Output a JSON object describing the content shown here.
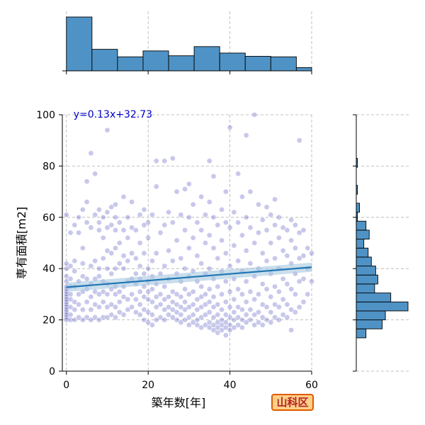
{
  "chart_data": {
    "type": "scatter",
    "title": "",
    "xlabel": "築年数[年]",
    "ylabel": "専有面積[m2]",
    "xlim": [
      -1,
      60
    ],
    "ylim": [
      0,
      100
    ],
    "xticks": [
      "0",
      "20",
      "40",
      "60"
    ],
    "yticks": [
      "0",
      "20",
      "40",
      "60",
      "80",
      "100"
    ],
    "grid": true,
    "regression": {
      "label": "y=0.13x+32.73",
      "slope": 0.13,
      "intercept": 32.73,
      "color": "#1f77b4",
      "ci_color": "#a6c8e0",
      "label_color": "#0000cc"
    },
    "point_color": "#3a3ab8",
    "bar_color": "#4f93c6",
    "points": [
      [
        0,
        20
      ],
      [
        0,
        21
      ],
      [
        0,
        22
      ],
      [
        0,
        23
      ],
      [
        0,
        24
      ],
      [
        0,
        25
      ],
      [
        0,
        26
      ],
      [
        0,
        27
      ],
      [
        0,
        28
      ],
      [
        0,
        29
      ],
      [
        0,
        30
      ],
      [
        0,
        31
      ],
      [
        0,
        32
      ],
      [
        0,
        33
      ],
      [
        0,
        35
      ],
      [
        0,
        37
      ],
      [
        0,
        40
      ],
      [
        0,
        42
      ],
      [
        0,
        61
      ],
      [
        1,
        20
      ],
      [
        1,
        22
      ],
      [
        1,
        25
      ],
      [
        1,
        28
      ],
      [
        1,
        30
      ],
      [
        1,
        33
      ],
      [
        1,
        36
      ],
      [
        1,
        41
      ],
      [
        1,
        54
      ],
      [
        2,
        20
      ],
      [
        2,
        24
      ],
      [
        2,
        27
      ],
      [
        2,
        33
      ],
      [
        2,
        39
      ],
      [
        2,
        43
      ],
      [
        2,
        57
      ],
      [
        3,
        21
      ],
      [
        3,
        26
      ],
      [
        3,
        30
      ],
      [
        3,
        35
      ],
      [
        3,
        54
      ],
      [
        3,
        60
      ],
      [
        4,
        20
      ],
      [
        4,
        24
      ],
      [
        4,
        31
      ],
      [
        4,
        37
      ],
      [
        4,
        42
      ],
      [
        4,
        48
      ],
      [
        4,
        63
      ],
      [
        5,
        21
      ],
      [
        5,
        27
      ],
      [
        5,
        32
      ],
      [
        5,
        36
      ],
      [
        5,
        58
      ],
      [
        5,
        66
      ],
      [
        5,
        74
      ],
      [
        6,
        20
      ],
      [
        6,
        24
      ],
      [
        6,
        29
      ],
      [
        6,
        34
      ],
      [
        6,
        41
      ],
      [
        6,
        56
      ],
      [
        6,
        85
      ],
      [
        7,
        21
      ],
      [
        7,
        26
      ],
      [
        7,
        31
      ],
      [
        7,
        36
      ],
      [
        7,
        43
      ],
      [
        7,
        61
      ],
      [
        7,
        77
      ],
      [
        8,
        20
      ],
      [
        8,
        25
      ],
      [
        8,
        30
      ],
      [
        8,
        37
      ],
      [
        8,
        40
      ],
      [
        8,
        55
      ],
      [
        8,
        58
      ],
      [
        8,
        63
      ],
      [
        9,
        21
      ],
      [
        9,
        27
      ],
      [
        9,
        31
      ],
      [
        9,
        35
      ],
      [
        9,
        44
      ],
      [
        9,
        52
      ],
      [
        9,
        60
      ],
      [
        10,
        21
      ],
      [
        10,
        25
      ],
      [
        10,
        30
      ],
      [
        10,
        34
      ],
      [
        10,
        40
      ],
      [
        10,
        47
      ],
      [
        10,
        56
      ],
      [
        10,
        62
      ],
      [
        10,
        94
      ],
      [
        11,
        22
      ],
      [
        11,
        26
      ],
      [
        11,
        32
      ],
      [
        11,
        38
      ],
      [
        11,
        46
      ],
      [
        11,
        57
      ],
      [
        11,
        64
      ],
      [
        12,
        21
      ],
      [
        12,
        25
      ],
      [
        12,
        30
      ],
      [
        12,
        33
      ],
      [
        12,
        40
      ],
      [
        12,
        48
      ],
      [
        12,
        55
      ],
      [
        12,
        60
      ],
      [
        12,
        65
      ],
      [
        13,
        23
      ],
      [
        13,
        27
      ],
      [
        13,
        31
      ],
      [
        13,
        42
      ],
      [
        13,
        50
      ],
      [
        13,
        58
      ],
      [
        14,
        22
      ],
      [
        14,
        29
      ],
      [
        14,
        33
      ],
      [
        14,
        40
      ],
      [
        14,
        45
      ],
      [
        14,
        55
      ],
      [
        14,
        68
      ],
      [
        15,
        24
      ],
      [
        15,
        28
      ],
      [
        15,
        35
      ],
      [
        15,
        43
      ],
      [
        15,
        52
      ],
      [
        15,
        60
      ],
      [
        16,
        25
      ],
      [
        16,
        30
      ],
      [
        16,
        36
      ],
      [
        16,
        46
      ],
      [
        16,
        56
      ],
      [
        16,
        66
      ],
      [
        17,
        23
      ],
      [
        17,
        28
      ],
      [
        17,
        34
      ],
      [
        17,
        38
      ],
      [
        17,
        44
      ],
      [
        17,
        55
      ],
      [
        18,
        22
      ],
      [
        18,
        26
      ],
      [
        18,
        31
      ],
      [
        18,
        36
      ],
      [
        18,
        41
      ],
      [
        18,
        50
      ],
      [
        18,
        61
      ],
      [
        19,
        20
      ],
      [
        19,
        24
      ],
      [
        19,
        29
      ],
      [
        19,
        33
      ],
      [
        19,
        38
      ],
      [
        19,
        46
      ],
      [
        19,
        57
      ],
      [
        19,
        63
      ],
      [
        20,
        19
      ],
      [
        20,
        23
      ],
      [
        20,
        28
      ],
      [
        20,
        31
      ],
      [
        20,
        35
      ],
      [
        20,
        40
      ],
      [
        20,
        52
      ],
      [
        20,
        58
      ],
      [
        21,
        18
      ],
      [
        21,
        22
      ],
      [
        21,
        27
      ],
      [
        21,
        32
      ],
      [
        21,
        37
      ],
      [
        21,
        43
      ],
      [
        21,
        61
      ],
      [
        22,
        20
      ],
      [
        22,
        25
      ],
      [
        22,
        29
      ],
      [
        22,
        34
      ],
      [
        22,
        46
      ],
      [
        22,
        72
      ],
      [
        22,
        82
      ],
      [
        23,
        21
      ],
      [
        23,
        26
      ],
      [
        23,
        30
      ],
      [
        23,
        38
      ],
      [
        23,
        54
      ],
      [
        24,
        20
      ],
      [
        24,
        24
      ],
      [
        24,
        28
      ],
      [
        24,
        33
      ],
      [
        24,
        41
      ],
      [
        24,
        57
      ],
      [
        24,
        82
      ],
      [
        25,
        22
      ],
      [
        25,
        25
      ],
      [
        25,
        29
      ],
      [
        25,
        36
      ],
      [
        25,
        47
      ],
      [
        25,
        62
      ],
      [
        26,
        21
      ],
      [
        26,
        24
      ],
      [
        26,
        27
      ],
      [
        26,
        31
      ],
      [
        26,
        43
      ],
      [
        26,
        58
      ],
      [
        26,
        83
      ],
      [
        27,
        20
      ],
      [
        27,
        23
      ],
      [
        27,
        26
      ],
      [
        27,
        30
      ],
      [
        27,
        38
      ],
      [
        27,
        51
      ],
      [
        27,
        70
      ],
      [
        28,
        19
      ],
      [
        28,
        22
      ],
      [
        28,
        25
      ],
      [
        28,
        29
      ],
      [
        28,
        35
      ],
      [
        28,
        44
      ],
      [
        28,
        61
      ],
      [
        29,
        20
      ],
      [
        29,
        24
      ],
      [
        29,
        27
      ],
      [
        29,
        32
      ],
      [
        29,
        40
      ],
      [
        29,
        55
      ],
      [
        29,
        71
      ],
      [
        30,
        18
      ],
      [
        30,
        21
      ],
      [
        30,
        25
      ],
      [
        30,
        30
      ],
      [
        30,
        37
      ],
      [
        30,
        48
      ],
      [
        30,
        60
      ],
      [
        30,
        73
      ],
      [
        31,
        19
      ],
      [
        31,
        22
      ],
      [
        31,
        26
      ],
      [
        31,
        31
      ],
      [
        31,
        39
      ],
      [
        31,
        52
      ],
      [
        31,
        65
      ],
      [
        32,
        18
      ],
      [
        32,
        20
      ],
      [
        32,
        24
      ],
      [
        32,
        28
      ],
      [
        32,
        35
      ],
      [
        32,
        45
      ],
      [
        32,
        58
      ],
      [
        33,
        17
      ],
      [
        33,
        21
      ],
      [
        33,
        25
      ],
      [
        33,
        29
      ],
      [
        33,
        33
      ],
      [
        33,
        42
      ],
      [
        33,
        55
      ],
      [
        33,
        68
      ],
      [
        34,
        18
      ],
      [
        34,
        22
      ],
      [
        34,
        26
      ],
      [
        34,
        30
      ],
      [
        34,
        38
      ],
      [
        34,
        50
      ],
      [
        34,
        61
      ],
      [
        35,
        17
      ],
      [
        35,
        19
      ],
      [
        35,
        23
      ],
      [
        35,
        27
      ],
      [
        35,
        32
      ],
      [
        35,
        40
      ],
      [
        35,
        53
      ],
      [
        35,
        66
      ],
      [
        35,
        82
      ],
      [
        36,
        16
      ],
      [
        36,
        18
      ],
      [
        36,
        21
      ],
      [
        36,
        25
      ],
      [
        36,
        29
      ],
      [
        36,
        36
      ],
      [
        36,
        48
      ],
      [
        36,
        60
      ],
      [
        36,
        76
      ],
      [
        37,
        15
      ],
      [
        37,
        17
      ],
      [
        37,
        19
      ],
      [
        37,
        22
      ],
      [
        37,
        26
      ],
      [
        37,
        33
      ],
      [
        37,
        44
      ],
      [
        37,
        57
      ],
      [
        38,
        16
      ],
      [
        38,
        18
      ],
      [
        38,
        20
      ],
      [
        38,
        24
      ],
      [
        38,
        30
      ],
      [
        38,
        39
      ],
      [
        38,
        51
      ],
      [
        38,
        63
      ],
      [
        39,
        14
      ],
      [
        39,
        17
      ],
      [
        39,
        19
      ],
      [
        39,
        22
      ],
      [
        39,
        27
      ],
      [
        39,
        35
      ],
      [
        39,
        46
      ],
      [
        39,
        58
      ],
      [
        39,
        70
      ],
      [
        40,
        16
      ],
      [
        40,
        18
      ],
      [
        40,
        21
      ],
      [
        40,
        25
      ],
      [
        40,
        31
      ],
      [
        40,
        41
      ],
      [
        40,
        56
      ],
      [
        40,
        95
      ],
      [
        41,
        17
      ],
      [
        41,
        20
      ],
      [
        41,
        23
      ],
      [
        41,
        28
      ],
      [
        41,
        36
      ],
      [
        41,
        49
      ],
      [
        41,
        62
      ],
      [
        42,
        18
      ],
      [
        42,
        21
      ],
      [
        42,
        25
      ],
      [
        42,
        32
      ],
      [
        42,
        43
      ],
      [
        42,
        58
      ],
      [
        42,
        77
      ],
      [
        43,
        17
      ],
      [
        43,
        20
      ],
      [
        43,
        24
      ],
      [
        43,
        30
      ],
      [
        43,
        39
      ],
      [
        43,
        53
      ],
      [
        43,
        68
      ],
      [
        44,
        19
      ],
      [
        44,
        22
      ],
      [
        44,
        27
      ],
      [
        44,
        35
      ],
      [
        44,
        47
      ],
      [
        44,
        60
      ],
      [
        44,
        92
      ],
      [
        45,
        20
      ],
      [
        45,
        24
      ],
      [
        45,
        31
      ],
      [
        45,
        42
      ],
      [
        45,
        56
      ],
      [
        45,
        70
      ],
      [
        46,
        18
      ],
      [
        46,
        22
      ],
      [
        46,
        28
      ],
      [
        46,
        37
      ],
      [
        46,
        50
      ],
      [
        46,
        100
      ],
      [
        47,
        19
      ],
      [
        47,
        23
      ],
      [
        47,
        30
      ],
      [
        47,
        40
      ],
      [
        47,
        54
      ],
      [
        47,
        65
      ],
      [
        48,
        18
      ],
      [
        48,
        21
      ],
      [
        48,
        26
      ],
      [
        48,
        34
      ],
      [
        48,
        46
      ],
      [
        48,
        59
      ],
      [
        49,
        20
      ],
      [
        49,
        25
      ],
      [
        49,
        32
      ],
      [
        49,
        43
      ],
      [
        49,
        55
      ],
      [
        49,
        64
      ],
      [
        50,
        19
      ],
      [
        50,
        23
      ],
      [
        50,
        29
      ],
      [
        50,
        38
      ],
      [
        50,
        50
      ],
      [
        50,
        61
      ],
      [
        51,
        21
      ],
      [
        51,
        26
      ],
      [
        51,
        33
      ],
      [
        51,
        44
      ],
      [
        51,
        57
      ],
      [
        51,
        67
      ],
      [
        52,
        20
      ],
      [
        52,
        25
      ],
      [
        52,
        31
      ],
      [
        52,
        40
      ],
      [
        52,
        52
      ],
      [
        52,
        60
      ],
      [
        53,
        22
      ],
      [
        53,
        28
      ],
      [
        53,
        36
      ],
      [
        53,
        47
      ],
      [
        53,
        56
      ],
      [
        54,
        21
      ],
      [
        54,
        26
      ],
      [
        54,
        34
      ],
      [
        54,
        45
      ],
      [
        54,
        55
      ],
      [
        55,
        16
      ],
      [
        55,
        24
      ],
      [
        55,
        32
      ],
      [
        55,
        42
      ],
      [
        55,
        51
      ],
      [
        55,
        59
      ],
      [
        56,
        23
      ],
      [
        56,
        30
      ],
      [
        56,
        38
      ],
      [
        56,
        48
      ],
      [
        56,
        57
      ],
      [
        57,
        25
      ],
      [
        57,
        35
      ],
      [
        57,
        44
      ],
      [
        57,
        54
      ],
      [
        57,
        90
      ],
      [
        58,
        27
      ],
      [
        58,
        36
      ],
      [
        58,
        45
      ],
      [
        58,
        55
      ],
      [
        59,
        30
      ],
      [
        59,
        40
      ],
      [
        59,
        48
      ],
      [
        60,
        35
      ],
      [
        60,
        46
      ]
    ],
    "x_histogram": {
      "bin_edges": [
        0,
        6.25,
        12.5,
        18.75,
        25,
        31.25,
        37.5,
        43.75,
        50,
        56.25,
        60
      ],
      "counts": [
        100,
        40,
        26,
        37,
        28,
        45,
        33,
        27,
        26,
        6
      ]
    },
    "y_histogram": {
      "bin_edges": [
        13,
        16.5,
        20,
        23.5,
        27,
        30.5,
        34,
        37.5,
        41,
        44.5,
        48,
        51.5,
        55,
        58.5,
        62,
        65.5,
        69,
        72.5,
        76,
        79.5,
        83,
        86.5,
        90,
        93.5,
        97,
        100.5
      ],
      "counts": [
        9,
        24,
        27,
        48,
        32,
        17,
        20,
        18,
        14,
        11,
        7,
        12,
        9,
        1,
        3,
        0,
        1,
        0,
        0,
        1,
        0,
        0,
        0,
        0,
        0
      ]
    }
  },
  "badge": {
    "label": "山科区",
    "bg": "#ffd08a",
    "border": "#e05a00",
    "text_color": "#b22222"
  }
}
